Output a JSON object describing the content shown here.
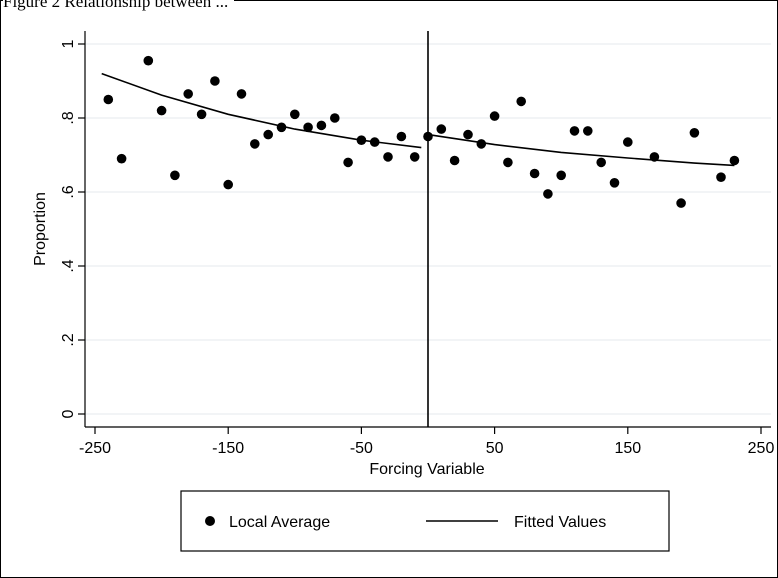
{
  "caption": "Figure 2 Relationship between ...",
  "chart_data": {
    "type": "scatter",
    "xlabel": "Forcing Variable",
    "ylabel": "Proportion",
    "xlim": [
      -250,
      250
    ],
    "ylim": [
      0,
      1
    ],
    "x_ticks": [
      -250,
      -150,
      -50,
      50,
      150,
      250
    ],
    "x_tick_labels": [
      "-250",
      "-150",
      "-50",
      "50",
      "150",
      "250"
    ],
    "y_ticks": [
      0,
      0.2,
      0.4,
      0.6,
      0.8,
      1
    ],
    "y_tick_labels": [
      "0",
      ".2",
      ".4",
      ".6",
      ".8",
      "1"
    ],
    "grid": "horizontal",
    "cutoff_x": 0,
    "legend_position": "bottom",
    "series": [
      {
        "name": "Local Average",
        "kind": "scatter",
        "points": [
          [
            -240,
            0.85
          ],
          [
            -230,
            0.69
          ],
          [
            -210,
            0.955
          ],
          [
            -200,
            0.82
          ],
          [
            -190,
            0.645
          ],
          [
            -180,
            0.865
          ],
          [
            -170,
            0.81
          ],
          [
            -160,
            0.9
          ],
          [
            -150,
            0.62
          ],
          [
            -140,
            0.865
          ],
          [
            -130,
            0.73
          ],
          [
            -120,
            0.755
          ],
          [
            -110,
            0.775
          ],
          [
            -100,
            0.81
          ],
          [
            -90,
            0.775
          ],
          [
            -80,
            0.78
          ],
          [
            -70,
            0.8
          ],
          [
            -60,
            0.68
          ],
          [
            -50,
            0.74
          ],
          [
            -40,
            0.735
          ],
          [
            -30,
            0.695
          ],
          [
            -20,
            0.75
          ],
          [
            -10,
            0.695
          ],
          [
            0,
            0.75
          ],
          [
            10,
            0.77
          ],
          [
            20,
            0.685
          ],
          [
            30,
            0.755
          ],
          [
            40,
            0.73
          ],
          [
            50,
            0.805
          ],
          [
            60,
            0.68
          ],
          [
            70,
            0.845
          ],
          [
            80,
            0.65
          ],
          [
            90,
            0.595
          ],
          [
            100,
            0.645
          ],
          [
            110,
            0.765
          ],
          [
            120,
            0.765
          ],
          [
            130,
            0.68
          ],
          [
            140,
            0.625
          ],
          [
            150,
            0.735
          ],
          [
            170,
            0.695
          ],
          [
            190,
            0.57
          ],
          [
            200,
            0.76
          ],
          [
            220,
            0.64
          ],
          [
            230,
            0.685
          ]
        ]
      },
      {
        "name": "Fitted Values",
        "kind": "line",
        "segments": [
          [
            [
              -245,
              0.92
            ],
            [
              -200,
              0.862
            ],
            [
              -150,
              0.81
            ],
            [
              -100,
              0.77
            ],
            [
              -50,
              0.74
            ],
            [
              -5,
              0.72
            ]
          ],
          [
            [
              0,
              0.755
            ],
            [
              50,
              0.728
            ],
            [
              100,
              0.707
            ],
            [
              150,
              0.692
            ],
            [
              200,
              0.678
            ],
            [
              230,
              0.672
            ]
          ]
        ]
      }
    ]
  }
}
